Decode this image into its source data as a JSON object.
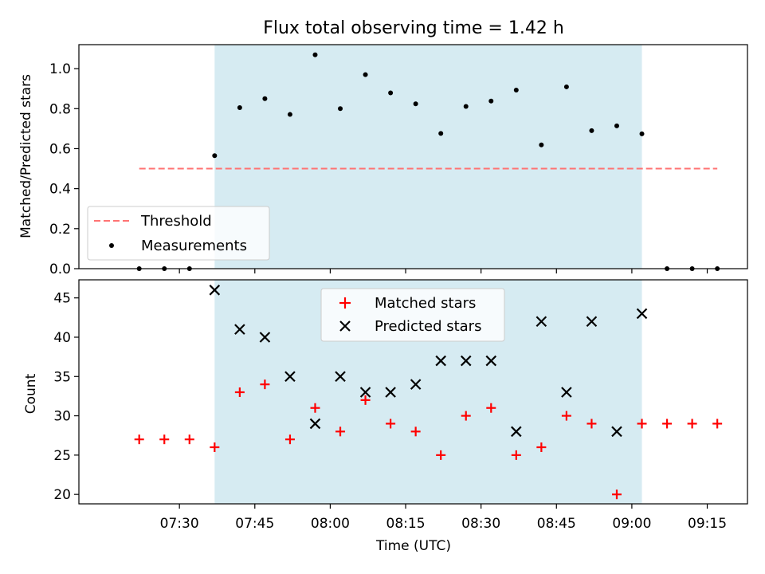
{
  "chart_data": [
    {
      "type": "scatter",
      "title": "Flux total observing time = 1.42 h",
      "xlabel": "",
      "ylabel": "Matched/Predicted stars",
      "ylim": [
        0,
        1.12
      ],
      "yticks": [
        0.0,
        0.2,
        0.4,
        0.6,
        0.8,
        1.0
      ],
      "xlim": [
        "07:10",
        "09:23"
      ],
      "shaded_interval": [
        "07:37",
        "09:02"
      ],
      "shade_color": "#add8e6",
      "threshold": {
        "name": "Threshold",
        "value": 0.5,
        "x_range": [
          "07:22",
          "09:17"
        ],
        "color": "#ff7373"
      },
      "legend": {
        "placement": "lower-left",
        "entries": [
          "Threshold",
          "Measurements"
        ]
      },
      "series": [
        {
          "name": "Measurements",
          "marker": "dot",
          "color": "#000000",
          "x": [
            "07:22",
            "07:27",
            "07:32",
            "07:37",
            "07:42",
            "07:47",
            "07:52",
            "07:57",
            "08:02",
            "08:07",
            "08:12",
            "08:17",
            "08:22",
            "08:27",
            "08:32",
            "08:37",
            "08:42",
            "08:47",
            "08:52",
            "08:57",
            "09:02",
            "09:07",
            "09:12",
            "09:17"
          ],
          "y": [
            0,
            0,
            0,
            0.565,
            0.805,
            0.85,
            0.771,
            1.069,
            0.8,
            0.97,
            0.879,
            0.824,
            0.676,
            0.811,
            0.838,
            0.893,
            0.619,
            0.909,
            0.69,
            0.714,
            0.674,
            0,
            0,
            0
          ]
        }
      ]
    },
    {
      "type": "scatter",
      "title": "",
      "xlabel": "Time (UTC)",
      "ylabel": "Count",
      "ylim": [
        18.8,
        47.3
      ],
      "yticks": [
        20,
        25,
        30,
        35,
        40,
        45
      ],
      "xlim": [
        "07:10",
        "09:23"
      ],
      "xticks": [
        "07:30",
        "07:45",
        "08:00",
        "08:15",
        "08:30",
        "08:45",
        "09:00",
        "09:15"
      ],
      "shaded_interval": [
        "07:37",
        "09:02"
      ],
      "shade_color": "#add8e6",
      "legend": {
        "placement": "upper-center",
        "entries": [
          "Matched stars",
          "Predicted stars"
        ]
      },
      "series": [
        {
          "name": "Matched stars",
          "marker": "plus",
          "color": "#ff0000",
          "x": [
            "07:22",
            "07:27",
            "07:32",
            "07:37",
            "07:42",
            "07:47",
            "07:52",
            "07:57",
            "08:02",
            "08:07",
            "08:12",
            "08:17",
            "08:22",
            "08:27",
            "08:32",
            "08:37",
            "08:42",
            "08:47",
            "08:52",
            "08:57",
            "09:02",
            "09:07",
            "09:12",
            "09:17"
          ],
          "y": [
            27,
            27,
            27,
            26,
            33,
            34,
            27,
            31,
            28,
            32,
            29,
            28,
            25,
            30,
            31,
            25,
            26,
            30,
            29,
            20,
            29,
            29,
            29,
            29
          ]
        },
        {
          "name": "Predicted stars",
          "marker": "x",
          "color": "#000000",
          "x": [
            "07:37",
            "07:42",
            "07:47",
            "07:52",
            "07:57",
            "08:02",
            "08:07",
            "08:12",
            "08:17",
            "08:22",
            "08:27",
            "08:32",
            "08:37",
            "08:42",
            "08:47",
            "08:52",
            "08:57",
            "09:02"
          ],
          "y": [
            46,
            41,
            40,
            35,
            29,
            35,
            33,
            33,
            34,
            37,
            37,
            37,
            28,
            42,
            33,
            42,
            28,
            43
          ]
        }
      ]
    }
  ]
}
